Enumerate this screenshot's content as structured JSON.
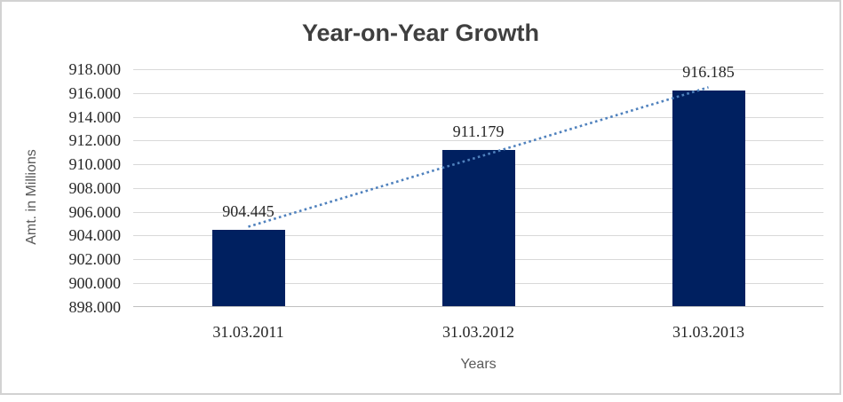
{
  "chart_data": {
    "type": "bar",
    "title": "Year-on-Year Growth",
    "xlabel": "Years",
    "ylabel": "Amt. in Millions",
    "categories": [
      "31.03.2011",
      "31.03.2012",
      "31.03.2013"
    ],
    "values": [
      904.445,
      911.179,
      916.185
    ],
    "data_labels": [
      "904.445",
      "911.179",
      "916.185"
    ],
    "ylim": [
      898,
      918
    ],
    "ytick_step": 2,
    "ytick_labels": [
      "898.000",
      "900.000",
      "902.000",
      "904.000",
      "906.000",
      "908.000",
      "910.000",
      "912.000",
      "914.000",
      "916.000",
      "918.000"
    ],
    "grid": true,
    "legend": false,
    "trendline": {
      "type": "linear",
      "style": "dotted"
    },
    "colors": {
      "bar": "#002060",
      "trendline": "#4f81bd",
      "gridline": "#d9d9d9",
      "axis_line": "#c0c0c0",
      "title": "#3f3f3f",
      "tick_label": "#262626",
      "axis_title": "#595959",
      "border": "#d2d2d2",
      "background": "#ffffff"
    }
  }
}
